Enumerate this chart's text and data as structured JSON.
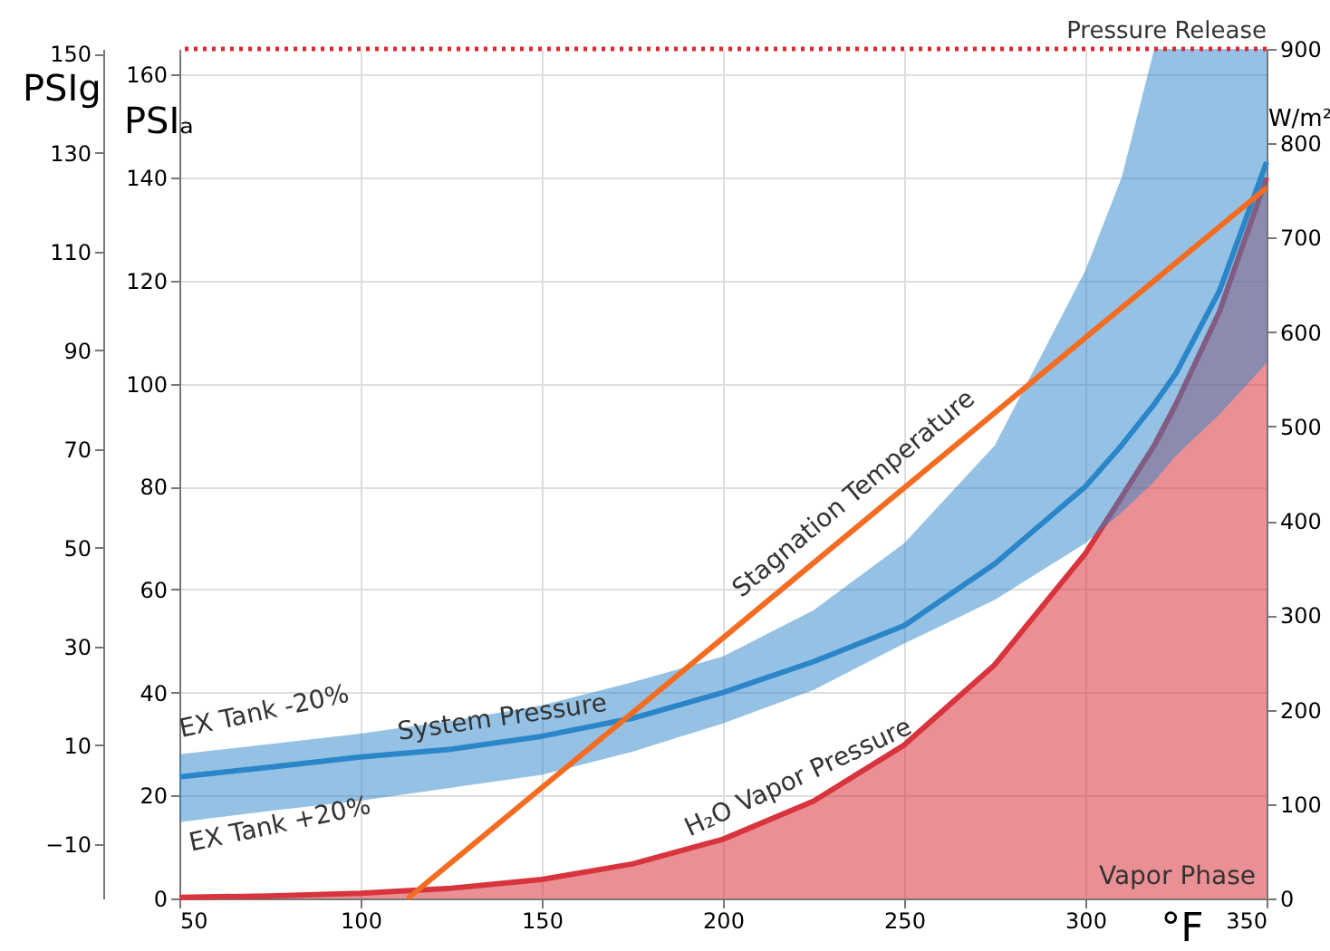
{
  "chart_data": {
    "type": "line",
    "xlabel": "°F",
    "ylabel": "PSIₐ",
    "y2label": "W/m²",
    "y3label": "PSIg",
    "x": [
      50,
      75,
      100,
      125,
      150,
      175,
      200,
      225,
      250,
      275,
      300,
      310,
      319,
      325,
      337,
      350
    ],
    "xlim": [
      50,
      350
    ],
    "xticks": [
      50,
      100,
      150,
      200,
      250,
      300,
      350
    ],
    "ylim": [
      0,
      165
    ],
    "yticks": [
      0,
      20,
      40,
      60,
      80,
      100,
      120,
      140,
      160
    ],
    "y2lim": [
      0,
      900
    ],
    "y2ticks": [
      0,
      100,
      200,
      300,
      400,
      500,
      600,
      700,
      800,
      900
    ],
    "y3lim": [
      -21,
      151
    ],
    "y3ticks": [
      -10,
      10,
      30,
      50,
      70,
      90,
      110,
      130,
      150
    ],
    "series": [
      {
        "name": "H₂O Vapor Pressure",
        "type": "area",
        "color": "#d8343d",
        "values": [
          0.2,
          0.5,
          1,
          2,
          3.7,
          6.7,
          11.5,
          18.9,
          29.8,
          45.4,
          67,
          78,
          88,
          96,
          114,
          140
        ]
      },
      {
        "name": "System Pressure",
        "color": "#2b86c9",
        "values": [
          23.6,
          25.5,
          27.5,
          29,
          31.5,
          35,
          40,
          46,
          53,
          65,
          80,
          88,
          96,
          102,
          118,
          143
        ],
        "lower": [
          14.8,
          17,
          19,
          21.5,
          24,
          28.5,
          34,
          40.5,
          49.5,
          58,
          69,
          75,
          81,
          86,
          94,
          104
        ],
        "upper": [
          28,
          30,
          32,
          34.5,
          37.5,
          42,
          47,
          56,
          69,
          88,
          122,
          140,
          165,
          165,
          165,
          165
        ]
      },
      {
        "name": "Stagnation Temperature",
        "type": "line",
        "axis": "y2",
        "color": "#f36c21",
        "x": [
          113,
          200,
          250,
          300,
          350
        ],
        "values": [
          0,
          276,
          435,
          594,
          753
        ]
      }
    ],
    "ref_lines": [
      {
        "axis": "y",
        "value": 165,
        "label": "Pressure Release",
        "color": "#e0282e",
        "line_style": "dotted"
      }
    ],
    "annotations": [
      "EX Tank -20%",
      "EX Tank +20%",
      "Vapor Phase"
    ],
    "grid": true
  }
}
